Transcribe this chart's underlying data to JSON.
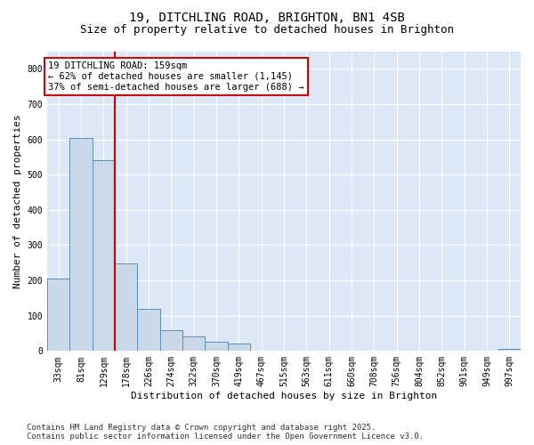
{
  "title_line1": "19, DITCHLING ROAD, BRIGHTON, BN1 4SB",
  "title_line2": "Size of property relative to detached houses in Brighton",
  "xlabel": "Distribution of detached houses by size in Brighton",
  "ylabel": "Number of detached properties",
  "categories": [
    "33sqm",
    "81sqm",
    "129sqm",
    "178sqm",
    "226sqm",
    "274sqm",
    "322sqm",
    "370sqm",
    "419sqm",
    "467sqm",
    "515sqm",
    "563sqm",
    "611sqm",
    "660sqm",
    "708sqm",
    "756sqm",
    "804sqm",
    "852sqm",
    "901sqm",
    "949sqm",
    "997sqm"
  ],
  "values": [
    205,
    605,
    540,
    248,
    120,
    60,
    42,
    25,
    20,
    0,
    0,
    0,
    0,
    0,
    0,
    0,
    0,
    0,
    0,
    0,
    5
  ],
  "bar_color": "#c9d9e8",
  "bar_edge_color": "#5b8db8",
  "vline_x": 2.5,
  "vline_color": "#cc0000",
  "annotation_text": "19 DITCHLING ROAD: 159sqm\n← 62% of detached houses are smaller (1,145)\n37% of semi-detached houses are larger (688) →",
  "annotation_box_color": "#ffffff",
  "annotation_box_edge": "#cc0000",
  "ylim": [
    0,
    850
  ],
  "yticks": [
    0,
    100,
    200,
    300,
    400,
    500,
    600,
    700,
    800
  ],
  "background_color": "#dce8f5",
  "footnote": "Contains HM Land Registry data © Crown copyright and database right 2025.\nContains public sector information licensed under the Open Government Licence v3.0.",
  "title_fontsize": 10,
  "subtitle_fontsize": 9,
  "xlabel_fontsize": 8,
  "ylabel_fontsize": 8,
  "tick_fontsize": 7,
  "annotation_fontsize": 7.5,
  "footnote_fontsize": 6.5
}
